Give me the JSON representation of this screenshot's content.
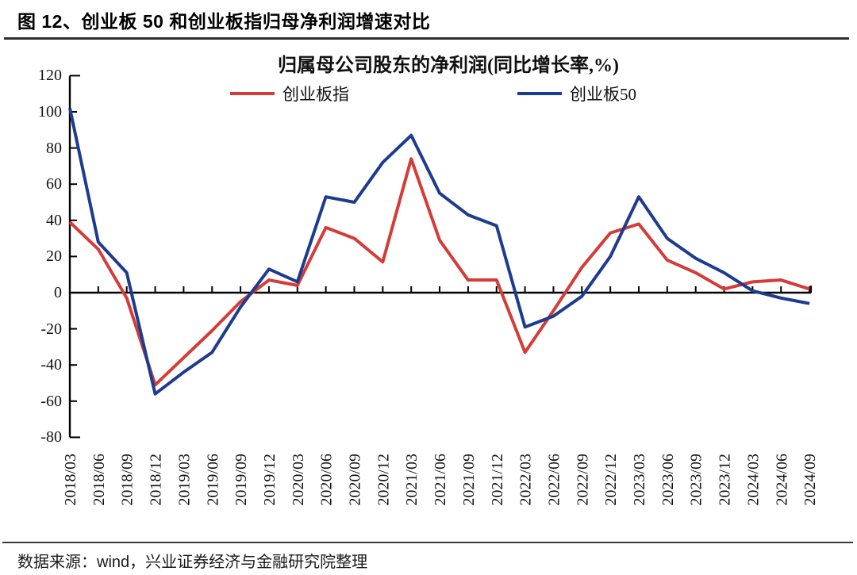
{
  "header": {
    "title": "图 12、创业板 50 和创业板指归母净利润增速对比"
  },
  "footer": {
    "source": "数据来源：wind，兴业证券经济与金融研究院整理"
  },
  "chart_data": {
    "type": "line",
    "title": "归属母公司股东的净利润(同比增长率,%)",
    "categories": [
      "2018/03",
      "2018/06",
      "2018/09",
      "2018/12",
      "2019/03",
      "2019/06",
      "2019/09",
      "2019/12",
      "2020/03",
      "2020/06",
      "2020/09",
      "2020/12",
      "2021/03",
      "2021/06",
      "2021/09",
      "2021/12",
      "2022/03",
      "2022/06",
      "2022/09",
      "2022/12",
      "2023/03",
      "2023/06",
      "2023/09",
      "2023/12",
      "2024/03",
      "2024/06",
      "2024/09"
    ],
    "series": [
      {
        "name": "创业板指",
        "color": "#d43c38",
        "values": [
          39,
          24,
          -3,
          -51,
          -36,
          -21,
          -5,
          7,
          4,
          36,
          30,
          17,
          74,
          29,
          7,
          7,
          -33,
          -10,
          14,
          33,
          38,
          18,
          11,
          2,
          6,
          7,
          2
        ]
      },
      {
        "name": "创业板50",
        "color": "#1e3c8f",
        "values": [
          102,
          28,
          11,
          -56,
          -44,
          -33,
          -8,
          13,
          6,
          53,
          50,
          72,
          87,
          55,
          43,
          37,
          -19,
          -13,
          -2,
          20,
          53,
          30,
          19,
          11,
          1,
          -3,
          -6
        ]
      }
    ],
    "yticks": [
      120,
      100,
      80,
      60,
      40,
      20,
      0,
      -20,
      -40,
      -60,
      -80
    ],
    "ylim": [
      -80,
      120
    ],
    "legend_position": "top",
    "grid": false,
    "axis_color": "#000000"
  }
}
